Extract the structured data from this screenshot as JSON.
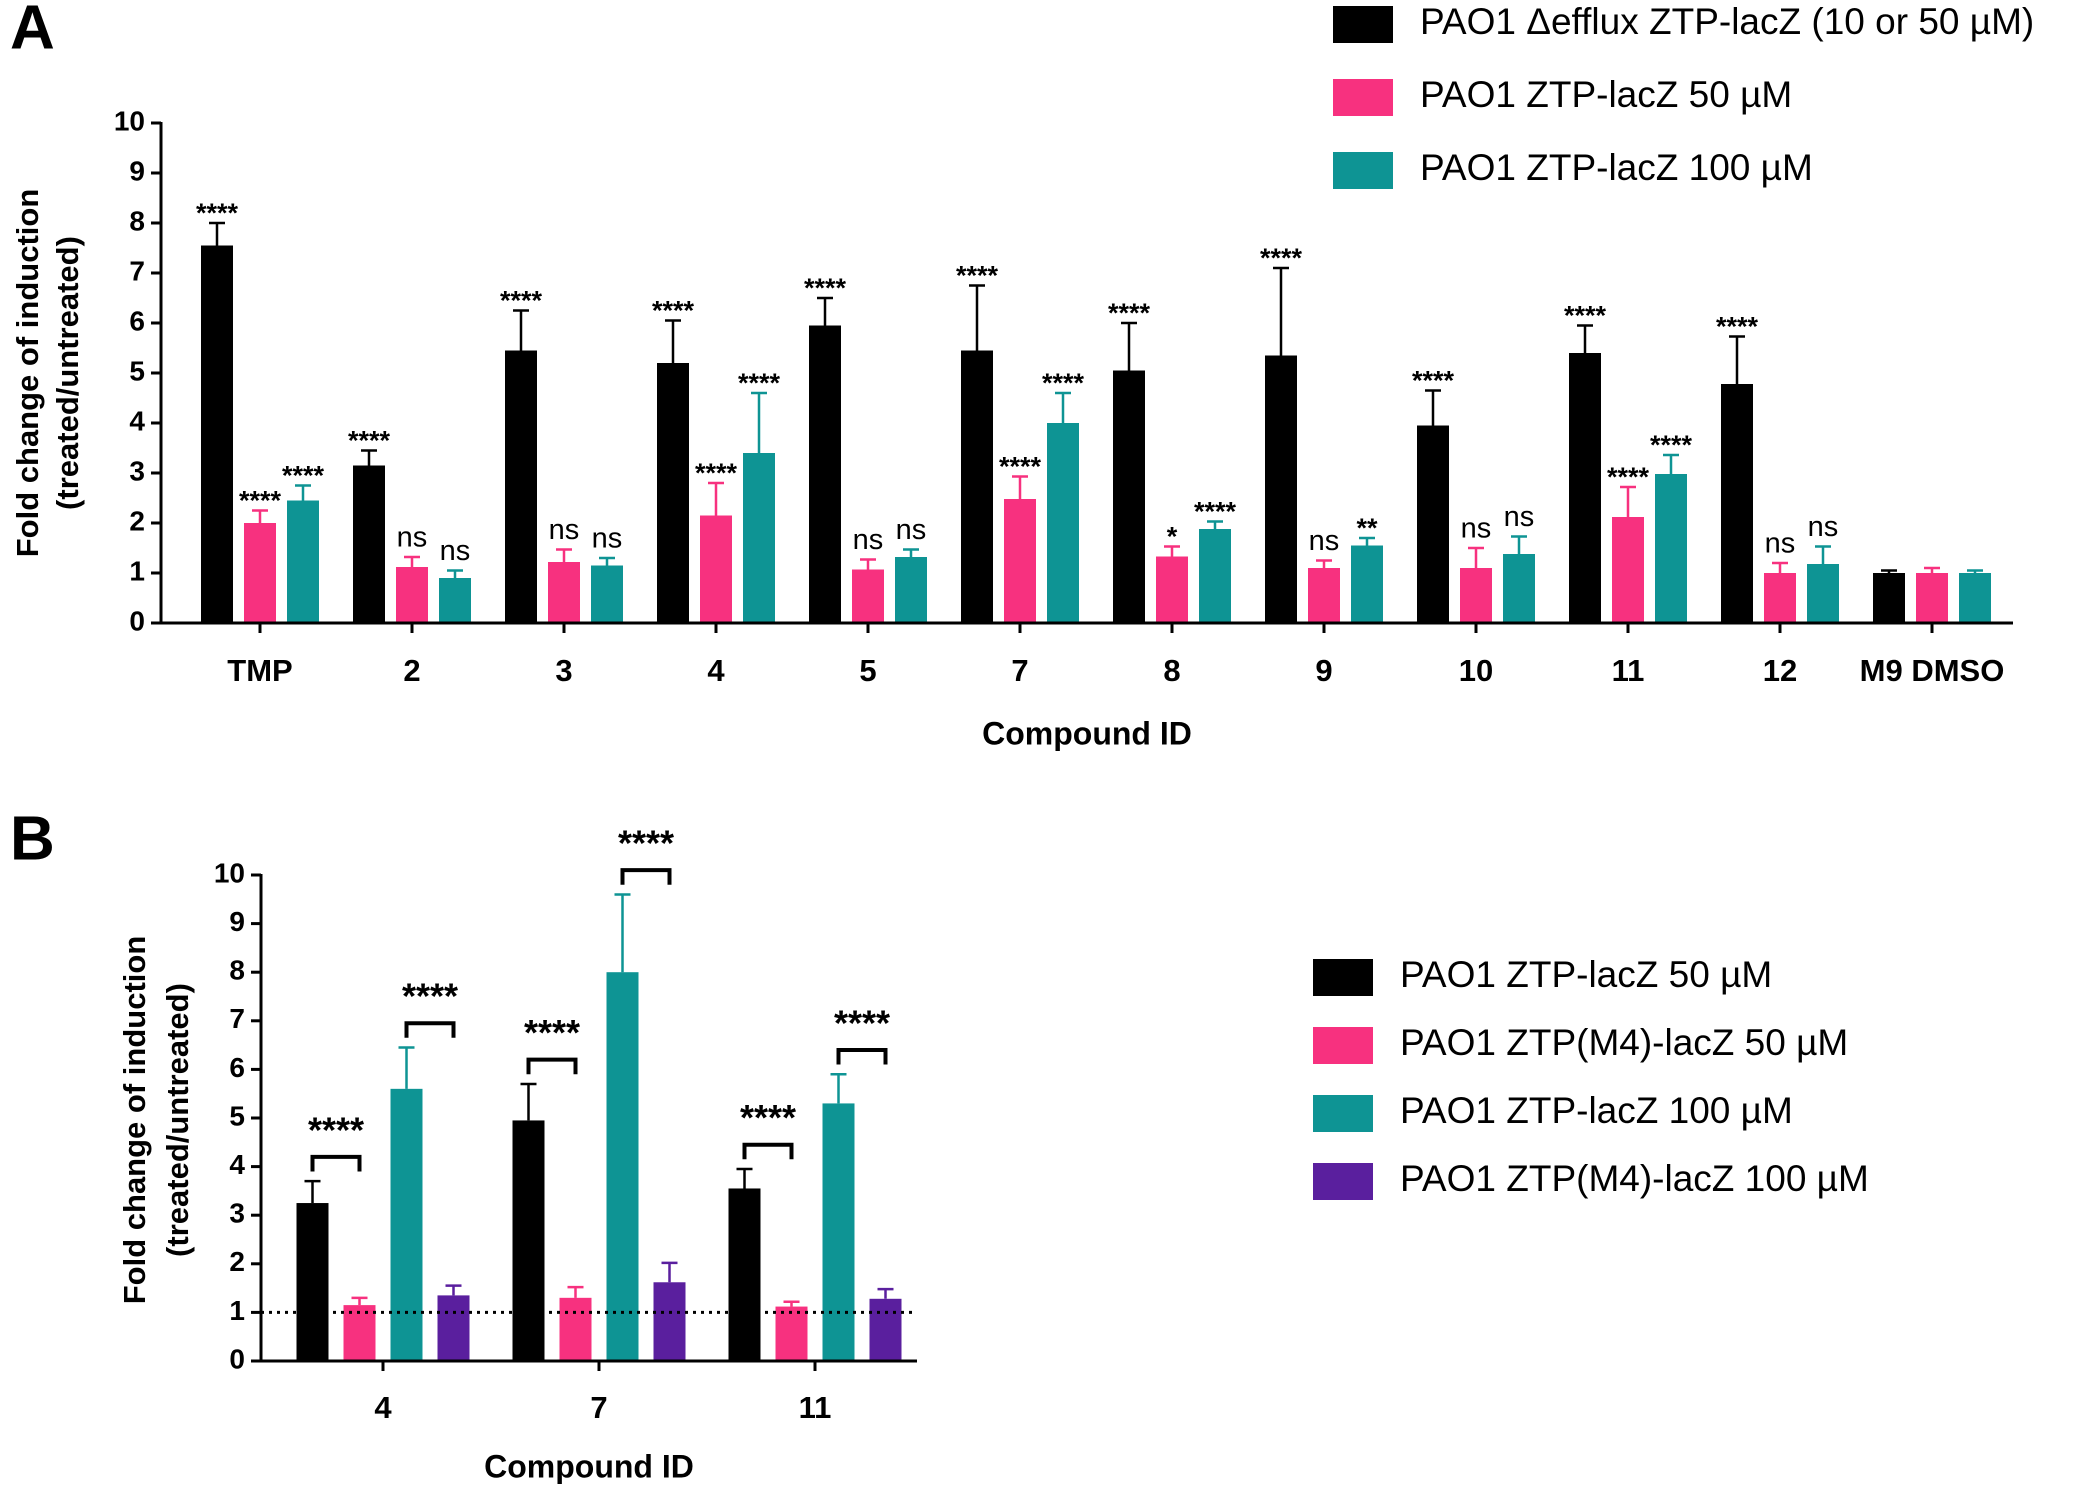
{
  "chart_data": [
    {
      "type": "bar",
      "panel": "A",
      "categories": [
        "TMP",
        "2",
        "3",
        "4",
        "5",
        "7",
        "8",
        "9",
        "10",
        "11",
        "12",
        "M9 DMSO"
      ],
      "series": [
        {
          "name": "PAO1 Δefflux ZTP-lacZ (10 or 50 µM)",
          "color": "#000000",
          "values": [
            7.55,
            3.15,
            5.45,
            5.2,
            5.95,
            5.45,
            5.05,
            5.35,
            3.95,
            5.4,
            4.78,
            1.0
          ],
          "errors": [
            0.45,
            0.3,
            0.8,
            0.85,
            0.55,
            1.3,
            0.95,
            1.75,
            0.7,
            0.55,
            0.95,
            0.05
          ],
          "labels": [
            "****",
            "****",
            "****",
            "****",
            "****",
            "****",
            "****",
            "****",
            "****",
            "****",
            "****",
            null
          ]
        },
        {
          "name": "PAO1 ZTP-lacZ 50 µM",
          "color": "#f7317f",
          "values": [
            2.0,
            1.12,
            1.22,
            2.15,
            1.07,
            2.48,
            1.33,
            1.1,
            1.1,
            2.12,
            1.0,
            1.0
          ],
          "errors": [
            0.25,
            0.2,
            0.25,
            0.65,
            0.2,
            0.45,
            0.2,
            0.15,
            0.4,
            0.6,
            0.2,
            0.1
          ],
          "labels": [
            "****",
            "ns",
            "ns",
            "****",
            "ns",
            "****",
            "*",
            "ns",
            "ns",
            "****",
            "ns",
            null
          ]
        },
        {
          "name": "PAO1 ZTP-lacZ 100 µM",
          "color": "#0e9494",
          "values": [
            2.45,
            0.9,
            1.15,
            3.4,
            1.32,
            4.0,
            1.88,
            1.55,
            1.38,
            2.98,
            1.18,
            1.0
          ],
          "errors": [
            0.3,
            0.15,
            0.15,
            1.2,
            0.15,
            0.6,
            0.15,
            0.15,
            0.35,
            0.38,
            0.35,
            0.05
          ],
          "labels": [
            "****",
            "ns",
            "ns",
            "****",
            "ns",
            "****",
            "****",
            "**",
            "ns",
            "****",
            "ns",
            null
          ]
        }
      ],
      "xlabel": "Compound ID",
      "ylabel": [
        "Fold change of induction",
        "(treated/untreated)"
      ],
      "ylim": [
        0,
        10
      ],
      "yticks": [
        0,
        1,
        2,
        3,
        4,
        5,
        6,
        7,
        8,
        9,
        10
      ]
    },
    {
      "type": "bar",
      "panel": "B",
      "categories": [
        "4",
        "7",
        "11"
      ],
      "series": [
        {
          "name": "PAO1 ZTP-lacZ 50 µM",
          "color": "#000000",
          "values": [
            3.25,
            4.95,
            3.55
          ],
          "errors": [
            0.45,
            0.75,
            0.4
          ]
        },
        {
          "name": "PAO1 ZTP(M4)-lacZ 50 µM",
          "color": "#f7317f",
          "values": [
            1.15,
            1.3,
            1.12
          ],
          "errors": [
            0.15,
            0.22,
            0.1
          ]
        },
        {
          "name": "PAO1 ZTP-lacZ 100 µM",
          "color": "#0e9494",
          "values": [
            5.6,
            8.0,
            5.3
          ],
          "errors": [
            0.85,
            1.6,
            0.6
          ]
        },
        {
          "name": "PAO1 ZTP(M4)-lacZ 100 µM",
          "color": "#5a1f9e",
          "values": [
            1.35,
            1.62,
            1.28
          ],
          "errors": [
            0.2,
            0.4,
            0.2
          ]
        }
      ],
      "bracket_labels": [
        [
          "****",
          "****"
        ],
        [
          "****",
          "****"
        ],
        [
          "****",
          "****"
        ]
      ],
      "reference_line": 1,
      "xlabel": "Compound ID",
      "ylabel": [
        "Fold change of induction",
        "(treated/untreated)"
      ],
      "ylim": [
        0,
        10
      ],
      "yticks": [
        0,
        1,
        2,
        3,
        4,
        5,
        6,
        7,
        8,
        9,
        10
      ]
    }
  ]
}
